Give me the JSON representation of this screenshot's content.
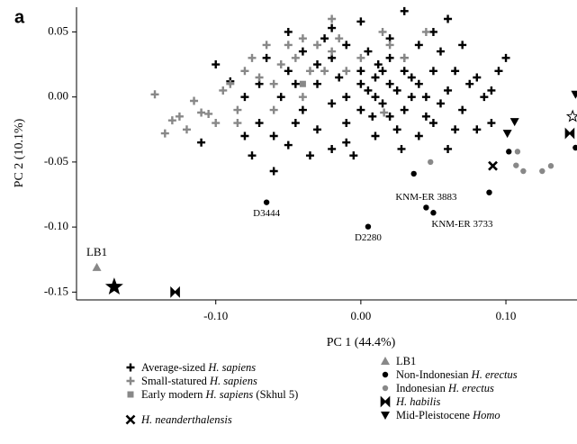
{
  "chart_data": {
    "type": "scatter",
    "panel_label": "a",
    "xlabel": "PC 1 (44.4%)",
    "ylabel": "PC 2 (10.1%)",
    "xlim": [
      -0.196,
      0.149
    ],
    "ylim": [
      -0.156,
      0.069
    ],
    "xticks": [
      {
        "value": -0.1,
        "label": "-0.10"
      },
      {
        "value": 0,
        "label": "0.00"
      },
      {
        "value": 0.1,
        "label": "0.10"
      }
    ],
    "yticks": [
      {
        "value": 0.05,
        "label": "0.05"
      },
      {
        "value": 0,
        "label": "0.00"
      },
      {
        "value": -0.05,
        "label": "-0.05"
      },
      {
        "value": -0.1,
        "label": "-0.10"
      },
      {
        "value": -0.15,
        "label": "-0.15"
      }
    ],
    "series": [
      {
        "name": "Average-sized H. sapiens",
        "color": "#000000",
        "marker": "plus",
        "x": [
          0.03,
          0.0,
          0.06,
          -0.05,
          -0.02,
          0.05,
          0.1,
          -0.1,
          -0.09,
          -0.11,
          -0.07,
          -0.06,
          -0.06,
          -0.05,
          -0.05,
          -0.04,
          -0.04,
          -0.03,
          -0.03,
          -0.02,
          -0.02,
          -0.01,
          -0.01,
          -0.01,
          0.0,
          0.0,
          0.005,
          0.01,
          0.01,
          0.015,
          0.02,
          0.02,
          0.025,
          0.03,
          0.03,
          0.035,
          0.04,
          0.04,
          0.045,
          0.05,
          0.05,
          0.055,
          0.06,
          0.06,
          0.065,
          0.07,
          0.075,
          0.08,
          0.085,
          0.09,
          0.095,
          0.07,
          -0.08,
          -0.08,
          -0.07,
          -0.065,
          -0.055,
          -0.045,
          -0.035,
          -0.025,
          -0.015,
          -0.005,
          0.005,
          0.015,
          0.02,
          0.025,
          0.035,
          0.04,
          0.045,
          0.012,
          -0.02,
          0.0,
          0.03,
          -0.03,
          0.055,
          0.08,
          0.02,
          0.01,
          0.008,
          -0.01,
          0.065,
          0.09,
          -0.045,
          0.028,
          -0.075
        ],
        "y": [
          0.066,
          0.058,
          0.06,
          0.05,
          0.053,
          0.05,
          0.03,
          0.025,
          0.012,
          -0.035,
          -0.02,
          -0.03,
          -0.057,
          -0.037,
          0.02,
          0.035,
          -0.01,
          0.01,
          -0.025,
          0.03,
          -0.04,
          0.04,
          0.0,
          -0.02,
          0.02,
          -0.01,
          0.035,
          0.0,
          -0.03,
          0.02,
          0.045,
          -0.015,
          0.005,
          0.03,
          -0.01,
          0.015,
          -0.03,
          0.04,
          0.0,
          0.02,
          -0.02,
          0.035,
          0.005,
          -0.04,
          0.02,
          -0.01,
          0.01,
          0.015,
          0.0,
          -0.02,
          0.02,
          0.04,
          0.0,
          -0.03,
          0.01,
          0.03,
          0.0,
          -0.02,
          -0.045,
          0.045,
          0.015,
          -0.045,
          0.005,
          -0.005,
          0.01,
          -0.025,
          0.0,
          0.01,
          -0.015,
          0.025,
          -0.005,
          0.01,
          0.02,
          0.025,
          -0.005,
          -0.025,
          0.03,
          0.015,
          -0.015,
          -0.035,
          -0.025,
          0.005,
          0.01,
          -0.04,
          -0.045
        ]
      },
      {
        "name": "Small-statured H. sapiens",
        "color": "#888888",
        "marker": "plus",
        "x": [
          -0.142,
          -0.135,
          -0.13,
          -0.125,
          -0.12,
          -0.11,
          -0.105,
          -0.1,
          -0.095,
          -0.09,
          -0.085,
          -0.08,
          -0.075,
          -0.07,
          -0.065,
          -0.06,
          -0.055,
          -0.05,
          -0.045,
          -0.04,
          -0.035,
          -0.03,
          -0.025,
          -0.02,
          -0.015,
          -0.01,
          0.0,
          0.015,
          0.02,
          0.03,
          -0.085,
          -0.06,
          -0.04,
          0.016,
          0.045,
          -0.02,
          -0.115
        ],
        "y": [
          0.002,
          -0.028,
          -0.018,
          -0.015,
          -0.025,
          -0.012,
          -0.013,
          -0.02,
          0.005,
          0.01,
          -0.01,
          0.02,
          0.03,
          0.015,
          0.04,
          -0.01,
          0.025,
          0.04,
          0.03,
          0.045,
          0.02,
          0.04,
          0.02,
          0.035,
          0.045,
          0.02,
          0.03,
          0.05,
          0.04,
          0.03,
          -0.02,
          0.01,
          0.0,
          -0.012,
          0.05,
          0.06,
          -0.003
        ]
      },
      {
        "name": "Early modern H. sapiens (Skhul 5)",
        "color": "#888888",
        "marker": "square",
        "x": [
          -0.04
        ],
        "y": [
          0.01
        ]
      },
      {
        "name": "H. neanderthalensis",
        "color": "#000000",
        "marker": "x",
        "x": [
          0.091
        ],
        "y": [
          -0.053
        ]
      },
      {
        "name": "LB1",
        "color": "#888888",
        "marker": "triangle",
        "x": [
          -0.182
        ],
        "y": [
          -0.131
        ],
        "point_labels": [
          "LB1"
        ]
      },
      {
        "name": "Non-Indonesian H. erectus",
        "color": "#000000",
        "marker": "circle",
        "x": [
          -0.065,
          0.005,
          0.045,
          0.05,
          0.0365,
          0.0885,
          0.102,
          0.148
        ],
        "y": [
          -0.081,
          -0.0997,
          -0.085,
          -0.089,
          -0.059,
          -0.0734,
          -0.042,
          -0.039
        ],
        "point_labels": [
          "D3444",
          "D2280",
          "KNM-ER 3883",
          "KNM-ER 3733",
          null,
          null,
          null,
          null
        ]
      },
      {
        "name": "Indonesian H. erectus",
        "color": "#888888",
        "marker": "circle",
        "x": [
          0.048,
          0.107,
          0.112,
          0.125,
          0.131,
          0.108
        ],
        "y": [
          -0.05,
          -0.0526,
          -0.057,
          -0.057,
          -0.053,
          -0.042
        ]
      },
      {
        "name": "H. habilis",
        "color": "#000000",
        "marker": "bowtie",
        "x": [
          -0.128,
          0.144
        ],
        "y": [
          -0.15,
          -0.028
        ]
      },
      {
        "name": "Mid-Pleistocene Homo",
        "color": "#000000",
        "marker": "tridown",
        "x": [
          0.101,
          0.106,
          0.148
        ],
        "y": [
          -0.028,
          -0.019,
          0.002
        ]
      },
      {
        "color": "#000000",
        "marker": "star",
        "x": [
          -0.17
        ],
        "y": [
          -0.146
        ]
      },
      {
        "color": "#ffffff",
        "marker": "star",
        "x": [
          0.146
        ],
        "y": [
          -0.015
        ]
      }
    ]
  }
}
